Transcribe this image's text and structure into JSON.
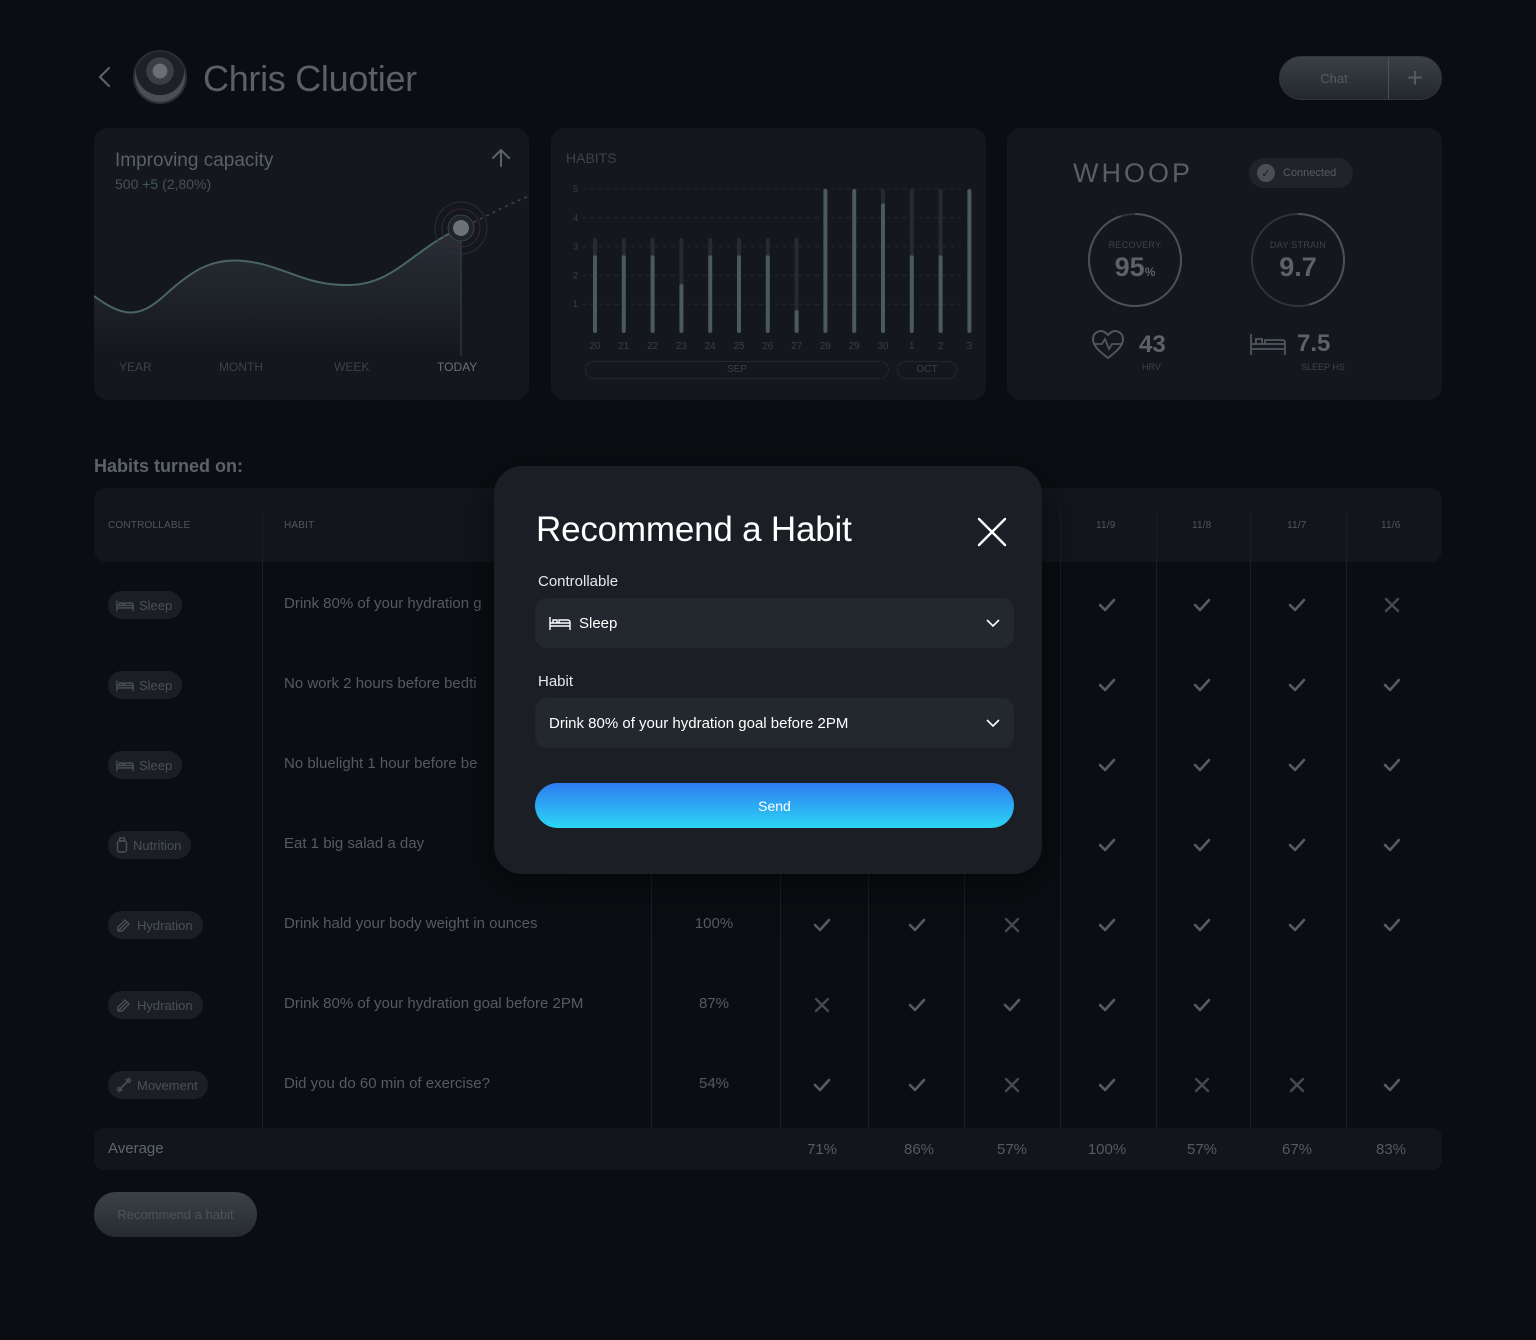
{
  "header": {
    "user_name": "Chris Cluotier",
    "chat_label": "Chat",
    "plus_label": "+"
  },
  "capacity_card": {
    "title": "Improving capacity",
    "value": "500",
    "delta": "+5",
    "percent": "(2,80%)",
    "tabs": [
      "YEAR",
      "MONTH",
      "WEEK",
      "TODAY"
    ],
    "active_tab": "TODAY"
  },
  "habits_card": {
    "title": "HABITS",
    "months": [
      "SEP",
      "OCT"
    ]
  },
  "chart_data": {
    "type": "bar",
    "title": "HABITS",
    "categories": [
      "20",
      "21",
      "22",
      "23",
      "24",
      "25",
      "26",
      "27",
      "28",
      "29",
      "30",
      "1",
      "2",
      "3"
    ],
    "series": [
      {
        "values": [
          2.7,
          2.7,
          2.7,
          1.7,
          2.7,
          2.7,
          2.7,
          0.8,
          5,
          5,
          4.5,
          2.7,
          2.7,
          5
        ]
      },
      {
        "values": [
          3.3,
          3.3,
          3.3,
          3.3,
          3.3,
          3.3,
          3.3,
          3.3,
          5,
          5,
          5,
          5,
          5,
          5
        ]
      }
    ],
    "yticks": [
      1,
      2,
      3,
      4,
      5
    ],
    "ylim": [
      0,
      5
    ],
    "grid": true
  },
  "whoop_card": {
    "brand": "WHOOP",
    "status": "Connected",
    "recovery_label": "RECOVERY",
    "recovery_value": "95",
    "recovery_unit": "%",
    "strain_label": "DAY STRAIN",
    "strain_value": "9.7",
    "hrv_value": "43",
    "hrv_label": "HRV",
    "sleep_value": "7.5",
    "sleep_label": "SLEEP HS",
    "recovery_fraction": 0.95,
    "strain_fraction": 0.46
  },
  "habits_table": {
    "section_title": "Habits turned on:",
    "columns": {
      "controllable": "CONTROLLABLE",
      "habit": "HABIT",
      "dates": [
        "11/9",
        "11/8",
        "11/7",
        "11/6"
      ]
    },
    "rows": [
      {
        "category": "Sleep",
        "icon": "bed-icon",
        "habit": "Drink 80% of your hydration g",
        "percent": "",
        "marks": [
          "",
          "",
          "",
          "check",
          "check",
          "check",
          "x"
        ]
      },
      {
        "category": "Sleep",
        "icon": "bed-icon",
        "habit": "No work 2 hours before bedti",
        "percent": "",
        "marks": [
          "",
          "",
          "",
          "check",
          "check",
          "check",
          "check"
        ]
      },
      {
        "category": "Sleep",
        "icon": "bed-icon",
        "habit": "No bluelight 1 hour before be",
        "percent": "",
        "marks": [
          "",
          "",
          "",
          "check",
          "check",
          "check",
          "check"
        ]
      },
      {
        "category": "Nutrition",
        "icon": "bottle-icon",
        "habit": "Eat 1 big salad a day",
        "percent": "",
        "marks": [
          "",
          "",
          "",
          "check",
          "check",
          "check",
          "check"
        ]
      },
      {
        "category": "Hydration",
        "icon": "hydration-icon",
        "habit": "Drink hald your body weight in ounces",
        "percent": "100%",
        "marks": [
          "check",
          "check",
          "x",
          "check",
          "check",
          "check",
          "check"
        ]
      },
      {
        "category": "Hydration",
        "icon": "hydration-icon",
        "habit": "Drink 80% of your hydration goal before 2PM",
        "percent": "87%",
        "marks": [
          "x",
          "check",
          "check",
          "check",
          "check",
          "",
          ""
        ]
      },
      {
        "category": "Movement",
        "icon": "dumbbell-icon",
        "habit": "Did you do 60 min of exercise?",
        "percent": "54%",
        "marks": [
          "check",
          "check",
          "x",
          "check",
          "x",
          "x",
          "check"
        ]
      }
    ],
    "average_label": "Average",
    "averages": [
      "71%",
      "86%",
      "57%",
      "100%",
      "57%",
      "67%",
      "83%"
    ]
  },
  "recommend_button_label": "Recommend a habit",
  "modal": {
    "title": "Recommend a Habit",
    "controllable_label": "Controllable",
    "controllable_value": "Sleep",
    "habit_label": "Habit",
    "habit_value": "Drink 80% of your hydration goal before 2PM",
    "send_label": "Send"
  }
}
